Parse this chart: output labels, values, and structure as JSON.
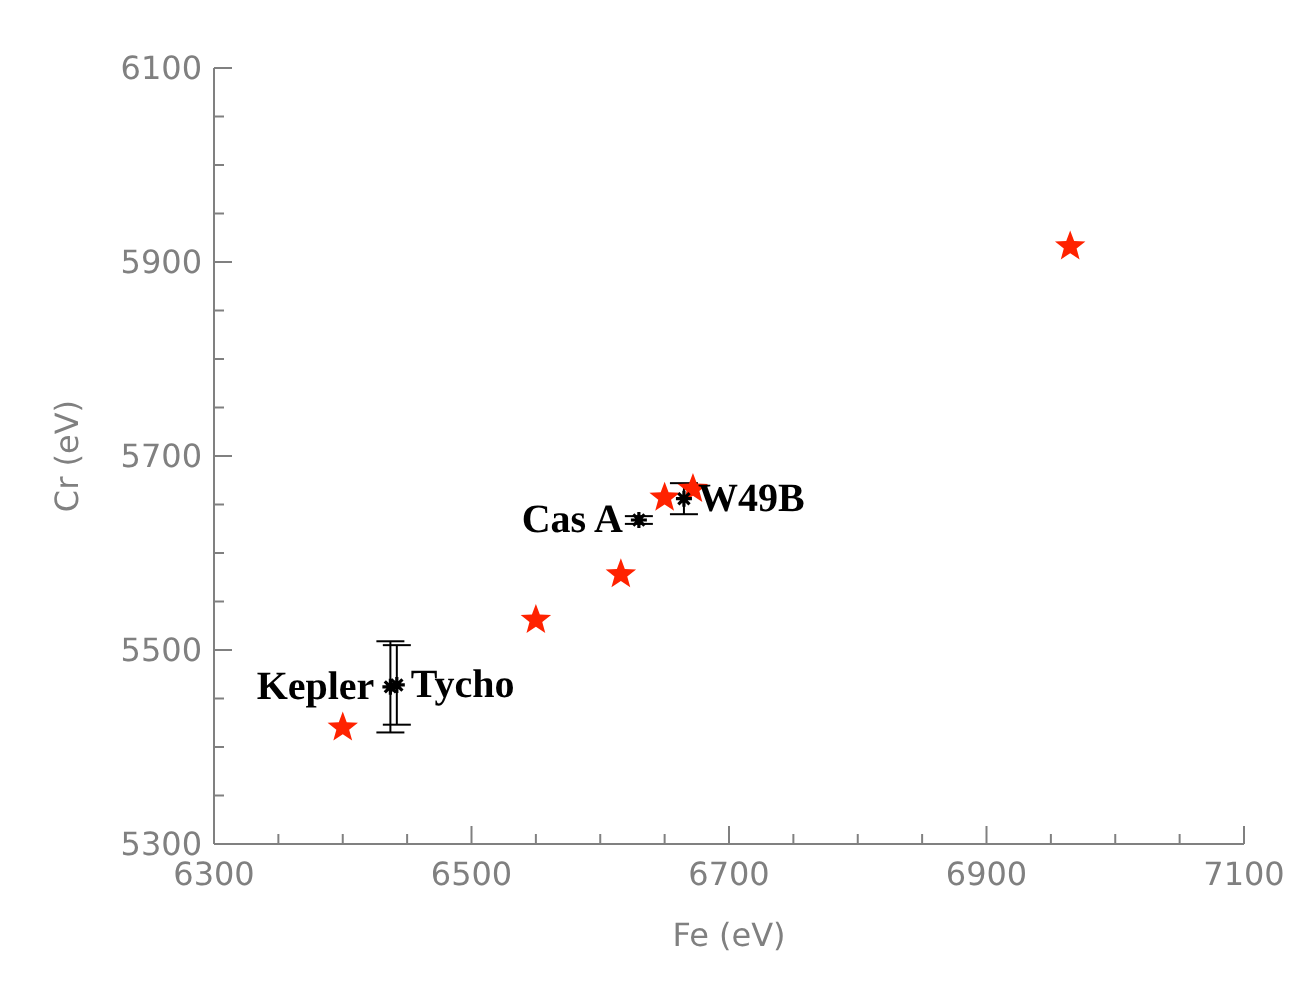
{
  "chart_data": {
    "type": "scatter",
    "xlabel": "Fe (eV)",
    "ylabel": "Cr (eV)",
    "xlim": [
      6300,
      7100
    ],
    "ylim": [
      5300,
      6100
    ],
    "xticks": [
      6300,
      {
        "value": 6350,
        "label": null
      },
      {
        "value": 6400,
        "label": null
      },
      {
        "value": 6450,
        "label": null
      },
      6500,
      {
        "value": 6550,
        "label": null
      },
      {
        "value": 6600,
        "label": null
      },
      {
        "value": 6650,
        "label": null
      },
      6700,
      {
        "value": 6750,
        "label": null
      },
      {
        "value": 6800,
        "label": null
      },
      {
        "value": 6850,
        "label": null
      },
      6900,
      {
        "value": 6950,
        "label": null
      },
      {
        "value": 7000,
        "label": null
      },
      {
        "value": 7050,
        "label": null
      },
      7100
    ],
    "yticks": [
      5300,
      {
        "value": 5350,
        "label": null
      },
      {
        "value": 5400,
        "label": null
      },
      {
        "value": 5450,
        "label": null
      },
      5500,
      {
        "value": 5550,
        "label": null
      },
      {
        "value": 5600,
        "label": null
      },
      {
        "value": 5650,
        "label": null
      },
      5700,
      {
        "value": 5750,
        "label": null
      },
      {
        "value": 5800,
        "label": null
      },
      {
        "value": 5850,
        "label": null
      },
      5900,
      {
        "value": 5950,
        "label": null
      },
      {
        "value": 6000,
        "label": null
      },
      {
        "value": 6050,
        "label": null
      },
      6100
    ],
    "series": [
      {
        "color": "#ff2200",
        "marker": "star",
        "x": [
          6400,
          6550,
          6616,
          6650,
          6672,
          6965
        ],
        "values": [
          5420,
          5531,
          5578,
          5657,
          5666,
          5916
        ]
      },
      {
        "color": "#000000",
        "marker": "cross",
        "x": [
          6437,
          6442,
          6630,
          6665
        ],
        "values": [
          5462,
          5464,
          5634,
          5656
        ],
        "errors": [
          47,
          41,
          4,
          16
        ]
      }
    ],
    "annotations": [
      {
        "text": "Kepler",
        "x": 6437,
        "y": 5462
      },
      {
        "text": "Tycho",
        "x": 6442,
        "y": 5464
      },
      {
        "text": "Cas A",
        "x": 6630,
        "y": 5634
      },
      {
        "text": "W49B",
        "x": 6665,
        "y": 5656
      }
    ]
  }
}
